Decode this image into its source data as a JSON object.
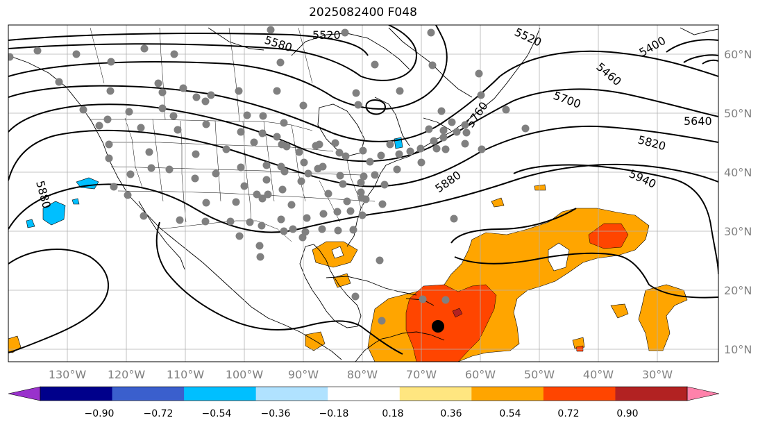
{
  "title": "2025082400 F048",
  "longitude_labels": [
    "130°W",
    "120°W",
    "110°W",
    "100°W",
    "90°W",
    "80°W",
    "70°W",
    "60°W",
    "50°W",
    "40°W",
    "30°W"
  ],
  "latitude_labels": [
    "60°N",
    "50°N",
    "40°N",
    "30°N",
    "20°N",
    "10°N"
  ],
  "contour_labels": [
    "5580",
    "5520",
    "5520",
    "5400",
    "5460",
    "5700",
    "5640",
    "5760",
    "5820",
    "5880",
    "5940",
    "5880"
  ],
  "colorbar": {
    "ticks": [
      "−0.90",
      "−0.72",
      "−0.54",
      "−0.36",
      "−0.18",
      "0.18",
      "0.36",
      "0.54",
      "0.72",
      "0.90"
    ],
    "colors": [
      "#9932cc",
      "#00008b",
      "#3a5fcd",
      "#00bfff",
      "#b0e2ff",
      "#ffffff",
      "#ffe680",
      "#ffa500",
      "#ff4500",
      "#b22222",
      "#ff82ab"
    ]
  },
  "colors": {
    "positive_light": "#ffa500",
    "positive_mid": "#ff4500",
    "positive_strong": "#b22222",
    "negative_light": "#00bfff",
    "station_dot": "#808080",
    "center_marker": "#000000"
  }
}
